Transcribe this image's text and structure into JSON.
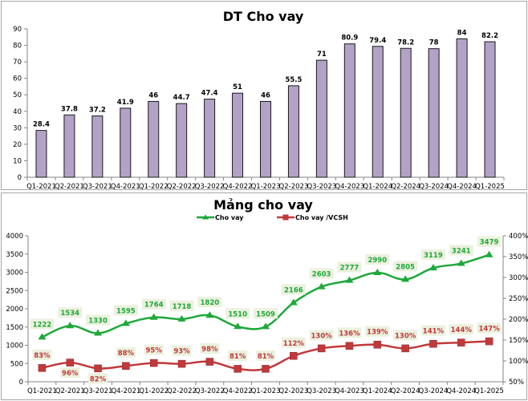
{
  "chart_data": [
    {
      "type": "bar",
      "title": "DT Cho vay",
      "xlabel": "",
      "ylabel": "",
      "ylim": [
        0,
        90
      ],
      "yticks": [
        0,
        10,
        20,
        30,
        40,
        50,
        60,
        70,
        80,
        90
      ],
      "grid": false,
      "categories": [
        "Q1-2021",
        "Q2-2021",
        "Q3-2021",
        "Q4-2021",
        "Q1-2022",
        "Q2-2022",
        "Q3-2022",
        "Q4-2022",
        "Q1-2023",
        "Q2-2023",
        "Q3-2023",
        "Q4-2023",
        "Q1-2024",
        "Q2-2024",
        "Q3-2024",
        "Q4-2024",
        "Q1-2025"
      ],
      "values": [
        28.4,
        37.8,
        37.2,
        41.9,
        46,
        44.7,
        47.4,
        51,
        46,
        55.5,
        71,
        80.9,
        79.4,
        78.2,
        78,
        84,
        82.2
      ],
      "labels": [
        "28.4",
        "37.8",
        "37.2",
        "41.9",
        "46",
        "44.7",
        "47.4",
        "51",
        "46",
        "55.5",
        "71",
        "80.9",
        "79.4",
        "78.2",
        "78",
        "84",
        "82.2"
      ],
      "colors": {
        "bar": "#b3a2c7",
        "bar_edge": "#1a1a1a"
      }
    },
    {
      "type": "line",
      "title": "Mảng cho vay",
      "legend_position": "top",
      "grid": false,
      "categories": [
        "Q1-2021",
        "Q2-2021",
        "Q3-2021",
        "Q4-2021",
        "Q1-2022",
        "Q2-2022",
        "Q3-2022",
        "Q4-2022",
        "Q1-2023",
        "Q2-2023",
        "Q3-2023",
        "Q4-2023",
        "Q1-2024",
        "Q2-2024",
        "Q3-2024",
        "Q4-2024",
        "Q1-2025"
      ],
      "y_left": {
        "ylim": [
          0,
          4000
        ],
        "ticks": [
          "0",
          "500",
          "1000",
          "1500",
          "2000",
          "2500",
          "3000",
          "3500",
          "4000"
        ]
      },
      "y_right": {
        "ylim": [
          50,
          400
        ],
        "ticks": [
          "50%",
          "100%",
          "150%",
          "200%",
          "250%",
          "300%",
          "350%",
          "400%"
        ]
      },
      "series": [
        {
          "name": "Cho vay",
          "axis": "left",
          "marker": "triangle",
          "color": "#1fa83a",
          "label_color": "#1fa83a",
          "values": [
            1222,
            1534,
            1330,
            1595,
            1764,
            1718,
            1820,
            1510,
            1509,
            2166,
            2603,
            2777,
            2990,
            2805,
            3119,
            3241,
            3479
          ],
          "labels": [
            "1222",
            "1534",
            "1330",
            "1595",
            "1764",
            "1718",
            "1820",
            "1510",
            "1509",
            "2166",
            "2603",
            "2777",
            "2990",
            "2805",
            "3119",
            "3241",
            "3479"
          ]
        },
        {
          "name": "Cho vay /VCSH",
          "axis": "right",
          "marker": "square",
          "color": "#c0393b",
          "label_color": "#c0393b",
          "values": [
            83,
            96,
            82,
            88,
            95,
            93,
            98,
            81,
            81,
            112,
            130,
            136,
            139,
            130,
            141,
            144,
            147
          ],
          "labels": [
            "83%",
            "96%",
            "82%",
            "88%",
            "95%",
            "93%",
            "98%",
            "81%",
            "81%",
            "112%",
            "130%",
            "136%",
            "139%",
            "130%",
            "141%",
            "144%",
            "147%"
          ],
          "label_below_indices": [
            1,
            2
          ]
        }
      ],
      "label_bg": "#ebf1de"
    }
  ]
}
